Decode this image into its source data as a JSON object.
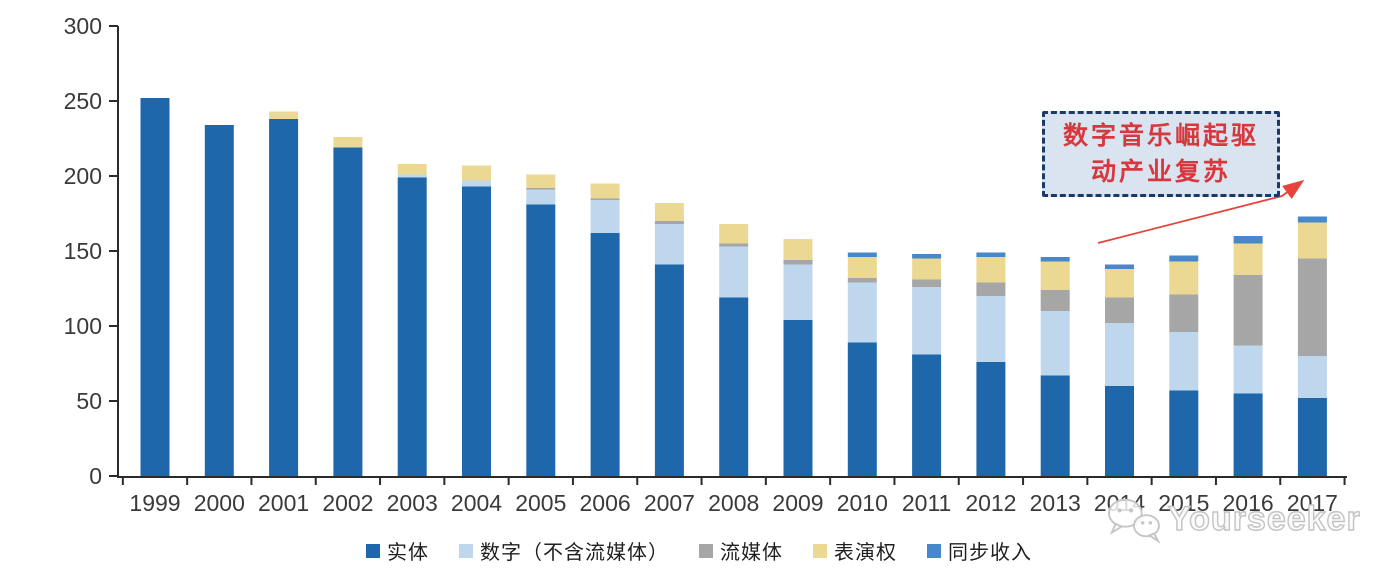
{
  "annotation": {
    "line1": "数字音乐崛起驱",
    "line2": "动产业复苏",
    "text_color": "#d6383e",
    "box_fill": "#dae4f1",
    "box_border": "#1c3a66",
    "arrow_color": "#e8423d"
  },
  "watermark": {
    "brand": "Yourseeker",
    "icon": "wechat-icon",
    "color": "#c3c3c3"
  },
  "chart_data": {
    "type": "bar",
    "stacked": true,
    "title": "",
    "xlabel": "",
    "ylabel": "",
    "grid": false,
    "legend_position": "bottom",
    "ylim": [
      0,
      300
    ],
    "yticks": [
      0,
      50,
      100,
      150,
      200,
      250,
      300
    ],
    "categories": [
      "1999",
      "2000",
      "2001",
      "2002",
      "2003",
      "2004",
      "2005",
      "2006",
      "2007",
      "2008",
      "2009",
      "2010",
      "2011",
      "2012",
      "2013",
      "2014",
      "2015",
      "2016",
      "2017"
    ],
    "series": [
      {
        "name": "实体",
        "color": "#1e67ab",
        "values": [
          252,
          234,
          238,
          219,
          199,
          193,
          181,
          162,
          141,
          119,
          104,
          89,
          81,
          76,
          67,
          60,
          57,
          55,
          52
        ]
      },
      {
        "name": "数字（不含流媒体）",
        "color": "#bfd7ed",
        "values": [
          0,
          0,
          0,
          0,
          2,
          4,
          10,
          22,
          27,
          34,
          37,
          40,
          45,
          44,
          43,
          42,
          39,
          32,
          28
        ]
      },
      {
        "name": "流媒体",
        "color": "#a6a6a6",
        "values": [
          0,
          0,
          0,
          0,
          0,
          0,
          1,
          1,
          2,
          2,
          3,
          3,
          5,
          9,
          14,
          17,
          25,
          47,
          65
        ]
      },
      {
        "name": "表演权",
        "color": "#ebd893",
        "values": [
          0,
          0,
          5,
          7,
          7,
          10,
          9,
          10,
          12,
          13,
          14,
          14,
          14,
          17,
          19,
          19,
          22,
          21,
          24
        ]
      },
      {
        "name": "同步收入",
        "color": "#4688c9",
        "values": [
          0,
          0,
          0,
          0,
          0,
          0,
          0,
          0,
          0,
          0,
          0,
          3,
          3,
          3,
          3,
          3,
          4,
          5,
          4
        ]
      }
    ]
  }
}
